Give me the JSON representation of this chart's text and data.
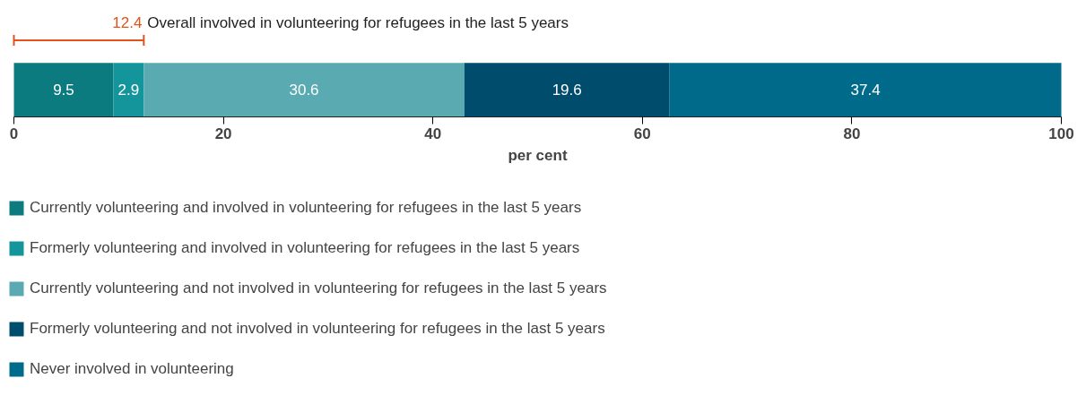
{
  "chart_data": {
    "type": "bar",
    "orientation": "horizontal",
    "stacked": true,
    "categories": [
      null
    ],
    "series": [
      {
        "name": "Currently volunteering and involved in volunteering for refugees in the last 5 years",
        "color": "#0c7b80",
        "values": [
          9.5
        ]
      },
      {
        "name": "Formerly volunteering and involved in volunteering for refugees in the last 5 years",
        "color": "#13959b",
        "values": [
          2.9
        ]
      },
      {
        "name": "Currently volunteering and not involved in volunteering for refugees in the last 5 years",
        "color": "#5aaab1",
        "values": [
          30.6
        ]
      },
      {
        "name": "Formerly volunteering and not involved in volunteering for refugees in the last 5 years",
        "color": "#004c6c",
        "values": [
          19.6
        ]
      },
      {
        "name": "Never involved in volunteering",
        "color": "#006a8a",
        "values": [
          37.4
        ]
      }
    ],
    "data_labels": true,
    "xlim": [
      0,
      100
    ],
    "xticks": [
      0,
      20,
      40,
      60,
      80,
      100
    ],
    "xlabel": "per cent",
    "grid": false,
    "legend": "bottom",
    "annotations": [
      "12.4 Overall involved in volunteering for refugees in the last 5 years"
    ]
  }
}
